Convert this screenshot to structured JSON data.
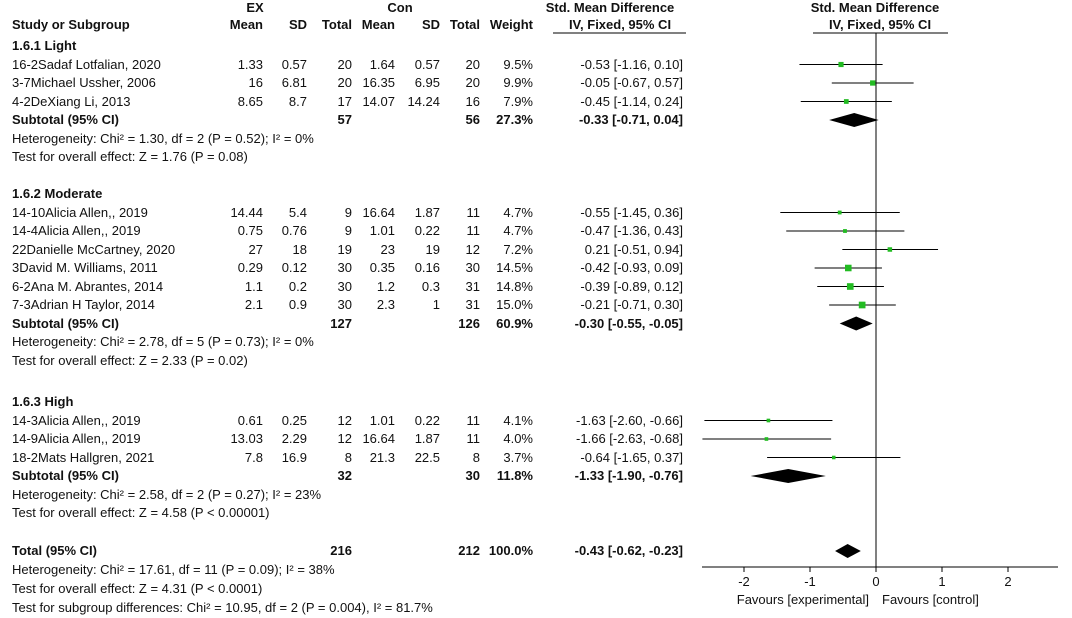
{
  "headers": {
    "group_ex": "EX",
    "group_con": "Con",
    "smd_left": "Std. Mean Difference",
    "smd_right": "Std. Mean Difference",
    "study": "Study or Subgroup",
    "mean": "Mean",
    "sd": "SD",
    "total": "Total",
    "weight": "Weight",
    "ci_left": "IV, Fixed, 95% CI",
    "ci_right": "IV, Fixed, 95% CI"
  },
  "subgroups": [
    {
      "title": "1.6.1 Light",
      "studies": [
        {
          "name": "16-2Sadaf Lotfalian, 2020",
          "ex_mean": "1.33",
          "ex_sd": "0.57",
          "ex_total": "20",
          "con_mean": "1.64",
          "con_sd": "0.57",
          "con_total": "20",
          "weight": "9.5%",
          "ci": "-0.53 [-1.16, 0.10]"
        },
        {
          "name": "3-7Michael Ussher, 2006",
          "ex_mean": "16",
          "ex_sd": "6.81",
          "ex_total": "20",
          "con_mean": "16.35",
          "con_sd": "6.95",
          "con_total": "20",
          "weight": "9.9%",
          "ci": "-0.05 [-0.67, 0.57]"
        },
        {
          "name": "4-2DeXiang Li, 2013",
          "ex_mean": "8.65",
          "ex_sd": "8.7",
          "ex_total": "17",
          "con_mean": "14.07",
          "con_sd": "14.24",
          "con_total": "16",
          "weight": "7.9%",
          "ci": "-0.45 [-1.14, 0.24]"
        }
      ],
      "subtotal": {
        "label": "Subtotal (95% CI)",
        "ex_total": "57",
        "con_total": "56",
        "weight": "27.3%",
        "ci": "-0.33 [-0.71, 0.04]"
      },
      "heterogeneity": "Heterogeneity: Chi² = 1.30, df = 2 (P = 0.52); I² = 0%",
      "overall": "Test for overall effect: Z = 1.76 (P = 0.08)"
    },
    {
      "title": "1.6.2 Moderate",
      "studies": [
        {
          "name": "14-10Alicia Allen,, 2019",
          "ex_mean": "14.44",
          "ex_sd": "5.4",
          "ex_total": "9",
          "con_mean": "16.64",
          "con_sd": "1.87",
          "con_total": "11",
          "weight": "4.7%",
          "ci": "-0.55 [-1.45, 0.36]"
        },
        {
          "name": "14-4Alicia Allen,, 2019",
          "ex_mean": "0.75",
          "ex_sd": "0.76",
          "ex_total": "9",
          "con_mean": "1.01",
          "con_sd": "0.22",
          "con_total": "11",
          "weight": "4.7%",
          "ci": "-0.47 [-1.36, 0.43]"
        },
        {
          "name": "22Danielle McCartney, 2020",
          "ex_mean": "27",
          "ex_sd": "18",
          "ex_total": "19",
          "con_mean": "23",
          "con_sd": "19",
          "con_total": "12",
          "weight": "7.2%",
          "ci": "0.21 [-0.51, 0.94]"
        },
        {
          "name": "3David M. Williams, 2011",
          "ex_mean": "0.29",
          "ex_sd": "0.12",
          "ex_total": "30",
          "con_mean": "0.35",
          "con_sd": "0.16",
          "con_total": "30",
          "weight": "14.5%",
          "ci": "-0.42 [-0.93, 0.09]"
        },
        {
          "name": "6-2Ana M. Abrantes, 2014",
          "ex_mean": "1.1",
          "ex_sd": "0.2",
          "ex_total": "30",
          "con_mean": "1.2",
          "con_sd": "0.3",
          "con_total": "31",
          "weight": "14.8%",
          "ci": "-0.39 [-0.89, 0.12]"
        },
        {
          "name": "7-3Adrian H Taylor, 2014",
          "ex_mean": "2.1",
          "ex_sd": "0.9",
          "ex_total": "30",
          "con_mean": "2.3",
          "con_sd": "1",
          "con_total": "31",
          "weight": "15.0%",
          "ci": "-0.21 [-0.71, 0.30]"
        }
      ],
      "subtotal": {
        "label": "Subtotal (95% CI)",
        "ex_total": "127",
        "con_total": "126",
        "weight": "60.9%",
        "ci": "-0.30 [-0.55, -0.05]"
      },
      "heterogeneity": "Heterogeneity: Chi² = 2.78, df = 5 (P = 0.73); I² = 0%",
      "overall": "Test for overall effect: Z = 2.33 (P = 0.02)"
    },
    {
      "title": "1.6.3 High",
      "studies": [
        {
          "name": "14-3Alicia Allen,, 2019",
          "ex_mean": "0.61",
          "ex_sd": "0.25",
          "ex_total": "12",
          "con_mean": "1.01",
          "con_sd": "0.22",
          "con_total": "11",
          "weight": "4.1%",
          "ci": "-1.63 [-2.60, -0.66]"
        },
        {
          "name": "14-9Alicia Allen,, 2019",
          "ex_mean": "13.03",
          "ex_sd": "2.29",
          "ex_total": "12",
          "con_mean": "16.64",
          "con_sd": "1.87",
          "con_total": "11",
          "weight": "4.0%",
          "ci": "-1.66 [-2.63, -0.68]"
        },
        {
          "name": "18-2Mats Hallgren, 2021",
          "ex_mean": "7.8",
          "ex_sd": "16.9",
          "ex_total": "8",
          "con_mean": "21.3",
          "con_sd": "22.5",
          "con_total": "8",
          "weight": "3.7%",
          "ci": "-0.64 [-1.65, 0.37]"
        }
      ],
      "subtotal": {
        "label": "Subtotal (95% CI)",
        "ex_total": "32",
        "con_total": "30",
        "weight": "11.8%",
        "ci": "-1.33 [-1.90, -0.76]"
      },
      "heterogeneity": "Heterogeneity: Chi² = 2.58, df = 2 (P = 0.27); I² = 23%",
      "overall": "Test for overall effect: Z = 4.58 (P < 0.00001)"
    }
  ],
  "total": {
    "label": "Total (95% CI)",
    "ex_total": "216",
    "con_total": "212",
    "weight": "100.0%",
    "ci": "-0.43 [-0.62, -0.23]",
    "heterogeneity": "Heterogeneity: Chi² = 17.61, df = 11 (P = 0.09); I² = 38%",
    "overall": "Test for overall effect: Z = 4.31 (P < 0.0001)",
    "subgroup_diff": "Test for subgroup differences: Chi² = 10.95, df = 2 (P = 0.004), I² = 81.7%"
  },
  "axis": {
    "ticks": [
      "-2",
      "-1",
      "0",
      "1",
      "2"
    ],
    "label_left": "Favours [experimental]",
    "label_right": "Favours [control]"
  },
  "colors": {
    "marker": "#22bb22",
    "diamond": "#000000",
    "line": "#000000"
  },
  "chart_data": {
    "type": "forest",
    "title": "Std. Mean Difference IV, Fixed, 95% CI",
    "xlim": [
      -2.6,
      2.6
    ],
    "xticks": [
      -2,
      -1,
      0,
      1,
      2
    ],
    "xlabel_left": "Favours [experimental]",
    "xlabel_right": "Favours [control]",
    "studies": [
      {
        "name": "16-2Sadaf Lotfalian, 2020",
        "smd": -0.53,
        "lo": -1.16,
        "hi": 0.1,
        "weight": 9.5
      },
      {
        "name": "3-7Michael Ussher, 2006",
        "smd": -0.05,
        "lo": -0.67,
        "hi": 0.57,
        "weight": 9.9
      },
      {
        "name": "4-2DeXiang Li, 2013",
        "smd": -0.45,
        "lo": -1.14,
        "hi": 0.24,
        "weight": 7.9
      },
      {
        "name": "14-10Alicia Allen,, 2019",
        "smd": -0.55,
        "lo": -1.45,
        "hi": 0.36,
        "weight": 4.7
      },
      {
        "name": "14-4Alicia Allen,, 2019",
        "smd": -0.47,
        "lo": -1.36,
        "hi": 0.43,
        "weight": 4.7
      },
      {
        "name": "22Danielle McCartney, 2020",
        "smd": 0.21,
        "lo": -0.51,
        "hi": 0.94,
        "weight": 7.2
      },
      {
        "name": "3David M. Williams, 2011",
        "smd": -0.42,
        "lo": -0.93,
        "hi": 0.09,
        "weight": 14.5
      },
      {
        "name": "6-2Ana M. Abrantes, 2014",
        "smd": -0.39,
        "lo": -0.89,
        "hi": 0.12,
        "weight": 14.8
      },
      {
        "name": "7-3Adrian H Taylor, 2014",
        "smd": -0.21,
        "lo": -0.71,
        "hi": 0.3,
        "weight": 15.0
      },
      {
        "name": "14-3Alicia Allen,, 2019",
        "smd": -1.63,
        "lo": -2.6,
        "hi": -0.66,
        "weight": 4.1
      },
      {
        "name": "14-9Alicia Allen,, 2019",
        "smd": -1.66,
        "lo": -2.63,
        "hi": -0.68,
        "weight": 4.0
      },
      {
        "name": "18-2Mats Hallgren, 2021",
        "smd": -0.64,
        "lo": -1.65,
        "hi": 0.37,
        "weight": 3.7
      }
    ],
    "summaries": [
      {
        "name": "Subtotal 1.6.1 Light",
        "smd": -0.33,
        "lo": -0.71,
        "hi": 0.04
      },
      {
        "name": "Subtotal 1.6.2 Moderate",
        "smd": -0.3,
        "lo": -0.55,
        "hi": -0.05
      },
      {
        "name": "Subtotal 1.6.3 High",
        "smd": -1.33,
        "lo": -1.9,
        "hi": -0.76
      },
      {
        "name": "Total",
        "smd": -0.43,
        "lo": -0.62,
        "hi": -0.23
      }
    ]
  }
}
